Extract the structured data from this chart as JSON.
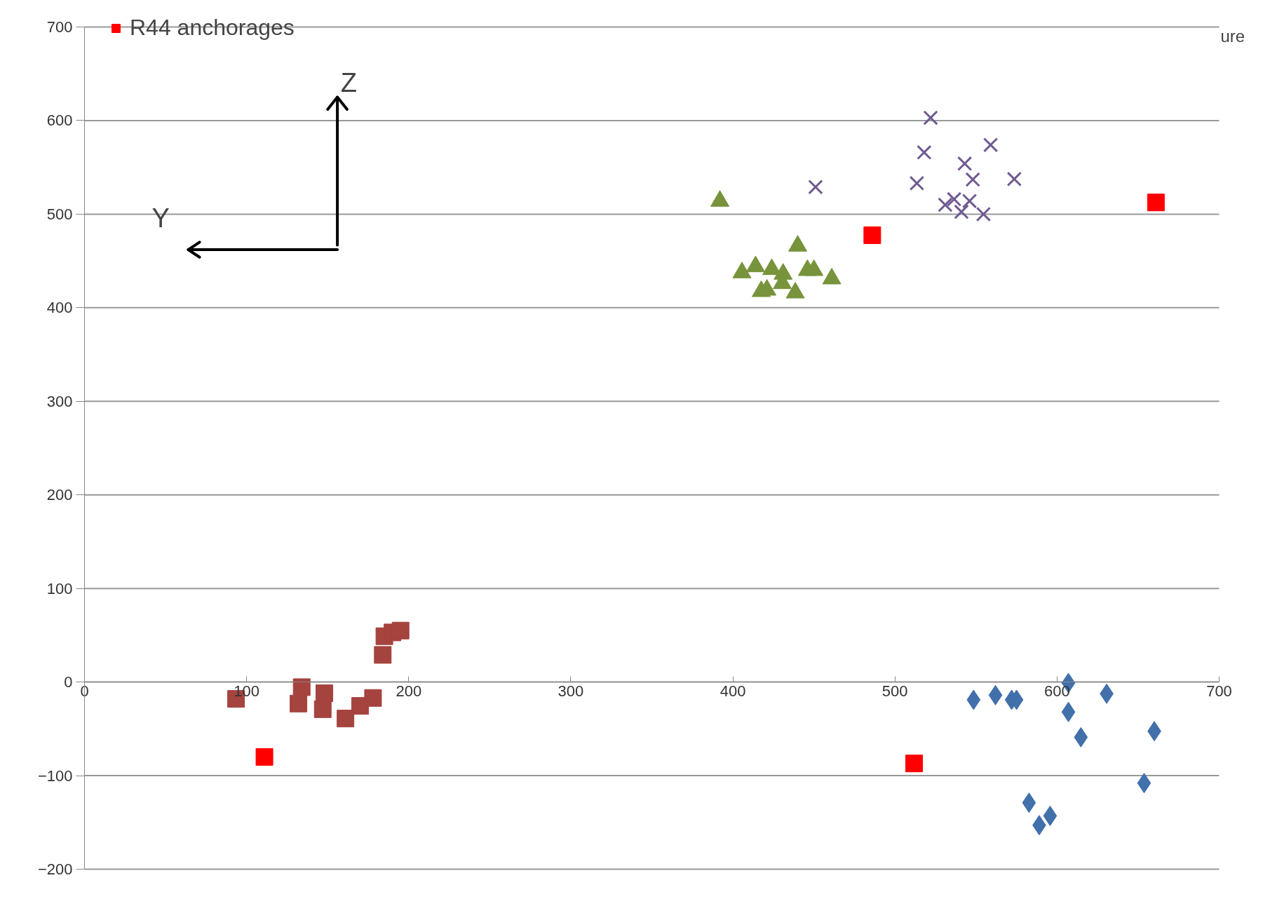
{
  "chart_data": {
    "type": "scatter",
    "xlim": [
      0,
      700
    ],
    "xticks": [
      0,
      100,
      200,
      300,
      400,
      500,
      600,
      700
    ],
    "ylim": [
      -200,
      700
    ],
    "yticks": [
      -200,
      -100,
      0,
      100,
      200,
      300,
      400,
      500,
      600,
      700
    ],
    "grid": "y",
    "legend": "top left",
    "annotations": [
      "Y",
      "Z",
      "ure"
    ],
    "series": [
      {
        "color": "#a5433f",
        "marker": "square",
        "x": [
          93.5,
          134,
          132,
          148,
          147,
          161,
          170,
          178,
          184,
          185,
          190,
          195
        ],
        "values": [
          -18,
          -5.5,
          -23,
          -12,
          -29,
          -39,
          -25.5,
          -17,
          29,
          49,
          53,
          55
        ]
      },
      {
        "color": "#77933c",
        "marker": "triangle",
        "x": [
          392,
          440,
          405.6,
          414,
          424,
          431,
          430.5,
          417.5,
          421,
          438.5,
          446,
          450,
          461
        ],
        "values": [
          514,
          466,
          437.5,
          444,
          441,
          436,
          426,
          417.5,
          419,
          416,
          440,
          440,
          431
        ]
      },
      {
        "color": "#6f5a91",
        "marker": "cross",
        "x": [
          451,
          522,
          518,
          513.5,
          559,
          543,
          548,
          573.6,
          531,
          536.5,
          541,
          546,
          554.6
        ],
        "values": [
          529,
          603,
          566,
          533,
          574,
          554,
          537,
          537.5,
          510,
          516,
          502.5,
          514,
          500
        ]
      },
      {
        "color": "#4170ab",
        "marker": "diamond",
        "x": [
          548.5,
          562,
          572,
          575,
          607,
          607,
          630.6,
          614.7,
          660,
          653.7,
          582.7,
          589,
          595.7
        ],
        "values": [
          -19,
          -14,
          -19,
          -19,
          -1,
          -32,
          -12.5,
          -59,
          -52.5,
          -108,
          -129,
          -153,
          -143
        ]
      },
      {
        "name": "R44 anchorages",
        "color": "#ff0000",
        "marker": "square",
        "x": [
          111,
          486,
          661,
          511.8
        ],
        "values": [
          -80,
          477.5,
          512.5,
          -87
        ]
      }
    ]
  }
}
